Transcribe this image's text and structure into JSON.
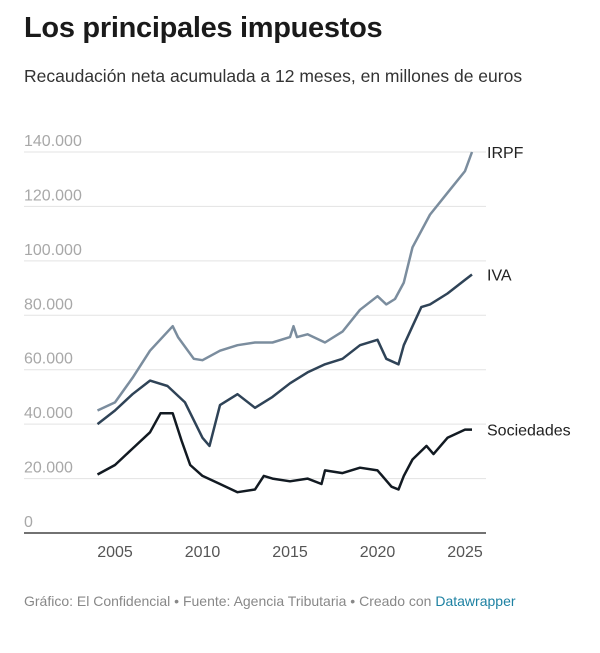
{
  "title": "Los principales impuestos",
  "subtitle": "Recaudación neta acumulada a 12 meses, en millones de euros",
  "footer": {
    "text": "Gráfico: El Confidencial • Fuente: Agencia Tributaria • Creado con",
    "link": "Datawrapper"
  },
  "chart_data": {
    "type": "line",
    "title": "Los principales impuestos",
    "ylim": [
      0,
      140000
    ],
    "xlim": [
      2003,
      2026
    ],
    "yticks": [
      0,
      20000,
      40000,
      60000,
      80000,
      100000,
      120000,
      140000
    ],
    "ytick_labels": [
      "0",
      "20.000",
      "40.000",
      "60.000",
      "80.000",
      "100.000",
      "120.000",
      "140.000"
    ],
    "xticks": [
      2005,
      2010,
      2015,
      2020,
      2025
    ],
    "xtick_labels": [
      "2005",
      "2010",
      "2015",
      "2020",
      "2025"
    ],
    "grid": true,
    "legend": "direct labels at line ends (right)",
    "series": [
      {
        "name": "IRPF",
        "color": "#7b8d9e",
        "x": [
          2004,
          2005,
          2006,
          2007,
          2008.3,
          2008.6,
          2009.5,
          2010,
          2011,
          2012,
          2013,
          2014,
          2015,
          2015.2,
          2015.4,
          2016,
          2017,
          2018,
          2019,
          2020,
          2020.5,
          2021,
          2021.5,
          2022,
          2023,
          2024,
          2025,
          2025.4
        ],
        "y": [
          45000,
          48000,
          57000,
          67000,
          76000,
          72000,
          64000,
          63500,
          67000,
          69000,
          70000,
          70000,
          72000,
          76000,
          72000,
          73000,
          70000,
          74000,
          82000,
          87000,
          84000,
          86000,
          92000,
          105000,
          117000,
          125000,
          133000,
          140000
        ]
      },
      {
        "name": "IVA",
        "color": "#2f4357",
        "x": [
          2004,
          2005,
          2006,
          2007,
          2008,
          2009,
          2010,
          2010.4,
          2011,
          2012,
          2013,
          2014,
          2015,
          2016,
          2017,
          2018,
          2019,
          2020,
          2020.5,
          2021.2,
          2021.5,
          2022,
          2022.5,
          2023,
          2024,
          2025,
          2025.4
        ],
        "y": [
          40000,
          45000,
          51000,
          56000,
          54000,
          48000,
          35000,
          32000,
          47000,
          51000,
          46000,
          50000,
          55000,
          59000,
          62000,
          64000,
          69000,
          71000,
          64000,
          62000,
          69000,
          76000,
          83000,
          84000,
          88000,
          93000,
          95000
        ]
      },
      {
        "name": "Sociedades",
        "color": "#121a22",
        "x": [
          2004,
          2005,
          2006,
          2007,
          2007.6,
          2008.3,
          2008.8,
          2009.3,
          2010,
          2011,
          2012,
          2013,
          2013.5,
          2014,
          2015,
          2016,
          2016.8,
          2017,
          2018,
          2019,
          2020,
          2020.8,
          2021.2,
          2021.5,
          2022,
          2022.8,
          2023.2,
          2024,
          2025,
          2025.4
        ],
        "y": [
          21500,
          25000,
          31000,
          37000,
          44000,
          44000,
          34000,
          25000,
          21000,
          18000,
          15000,
          16000,
          21000,
          20000,
          19000,
          20000,
          18000,
          23000,
          22000,
          24000,
          23000,
          17000,
          16000,
          21000,
          27000,
          32000,
          29000,
          35000,
          38000,
          38000
        ]
      }
    ]
  }
}
